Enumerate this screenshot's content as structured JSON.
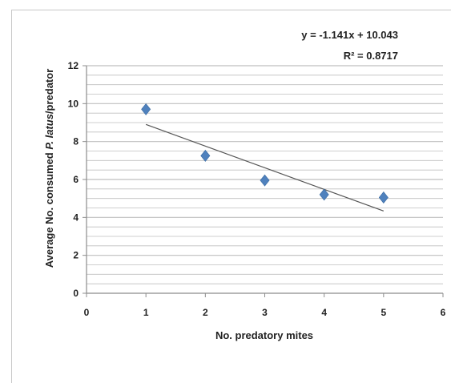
{
  "chart_data": {
    "type": "scatter",
    "xlabel": "No. predatory mites",
    "ylabel_parts": [
      "Average No. consumed ",
      "P. latus",
      "/predator"
    ],
    "xlim": [
      0,
      6
    ],
    "ylim": [
      0,
      12
    ],
    "xticks": [
      "0",
      "1",
      "2",
      "3",
      "4",
      "5",
      "6"
    ],
    "yticks": [
      "0",
      "2",
      "4",
      "6",
      "8",
      "10",
      "12"
    ],
    "grid": true,
    "series": [
      {
        "x": [
          1,
          2,
          3,
          4,
          5
        ],
        "y": [
          9.7,
          7.25,
          5.95,
          5.2,
          5.05
        ]
      }
    ],
    "trendline": {
      "slope": -1.141,
      "intercept": 10.043,
      "x_range": [
        1,
        5
      ]
    },
    "equation": "y = -1.141x + 10.043",
    "r_squared": "R² = 0.8717",
    "colors": {
      "marker": "#4f81bd",
      "trendline": "#555555",
      "grid": "#bfbfbf",
      "axis": "#8c8c8c"
    }
  }
}
